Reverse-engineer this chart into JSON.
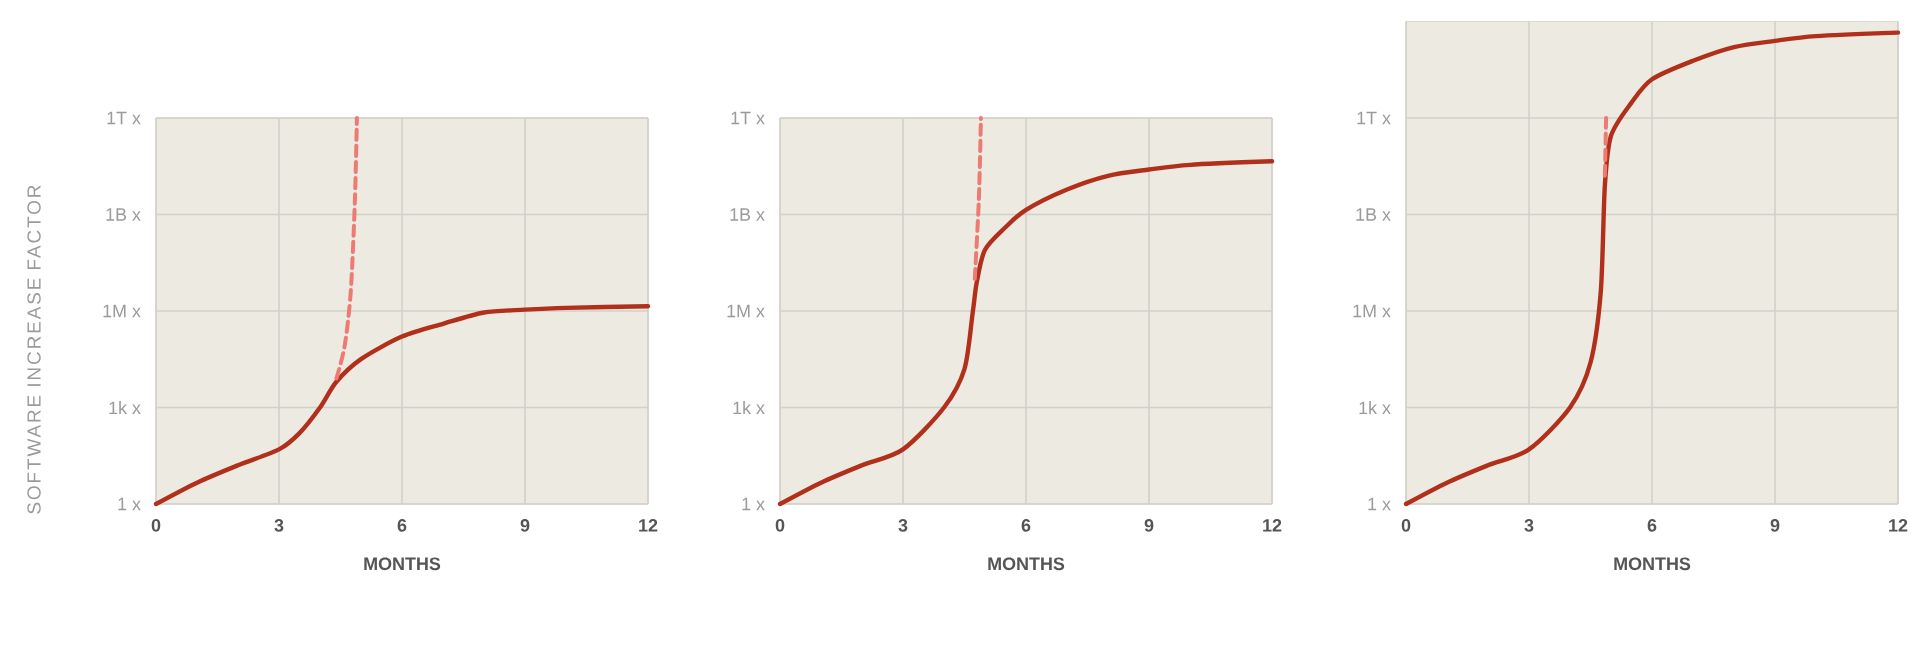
{
  "chart_data": [
    {
      "type": "line",
      "ylabel": "SOFTWARE INCREASE FACTOR",
      "xlabel": "MONTHS",
      "log": "y",
      "grid": true,
      "xlim": [
        0,
        12
      ],
      "xticks": [
        0,
        3,
        6,
        9,
        12
      ],
      "ylim": [
        1,
        1000000000000.0
      ],
      "yticks": [
        {
          "value": 1,
          "label": "1 x"
        },
        {
          "value": 1000,
          "label": "1k x"
        },
        {
          "value": 1000000,
          "label": "1M x"
        },
        {
          "value": 1000000000,
          "label": "1B x"
        },
        {
          "value": 1000000000000,
          "label": "1T x"
        }
      ],
      "series": [
        {
          "color": "#b0301c",
          "line_style": "solid",
          "x": [
            0,
            1,
            2,
            3,
            3.5,
            4,
            4.4,
            5,
            6,
            7,
            8,
            9,
            10,
            12
          ],
          "values": [
            1,
            4.6,
            16,
            50,
            160,
            1000,
            6300,
            32000,
            160000,
            400000,
            900000,
            1100000,
            1250000,
            1400000
          ]
        },
        {
          "color": "#ee7b73",
          "line_style": "dashed",
          "x": [
            4.4,
            4.6,
            4.75,
            4.85,
            4.9
          ],
          "values": [
            8000,
            80000,
            4000000,
            2500000000,
            1000000000000
          ]
        }
      ]
    },
    {
      "type": "line",
      "xlabel": "MONTHS",
      "log": "y",
      "grid": true,
      "xlim": [
        0,
        12
      ],
      "xticks": [
        0,
        3,
        6,
        9,
        12
      ],
      "ylim": [
        1,
        1000000000000.0
      ],
      "yticks": [
        {
          "value": 1,
          "label": "1 x"
        },
        {
          "value": 1000,
          "label": "1k x"
        },
        {
          "value": 1000000,
          "label": "1M x"
        },
        {
          "value": 1000000000,
          "label": "1B x"
        },
        {
          "value": 1000000000000,
          "label": "1T x"
        }
      ],
      "series": [
        {
          "color": "#b0301c",
          "line_style": "solid",
          "x": [
            0,
            1,
            2,
            3,
            4,
            4.5,
            4.7,
            4.8,
            5,
            5.5,
            6,
            7,
            8,
            9,
            10,
            12
          ],
          "values": [
            1,
            4.6,
            16,
            50,
            1000,
            16000,
            900000,
            8000000,
            80000000,
            400000000,
            1400000000,
            6000000000,
            16000000000,
            25000000000,
            35000000000,
            45000000000
          ]
        },
        {
          "color": "#ee7b73",
          "line_style": "dashed",
          "x": [
            4.75,
            4.85,
            4.9
          ],
          "values": [
            10000000,
            3000000000,
            1000000000000
          ]
        }
      ]
    },
    {
      "type": "line",
      "xlabel": "MONTHS",
      "log": "y",
      "grid": true,
      "xlim": [
        0,
        12
      ],
      "xticks": [
        0,
        3,
        6,
        9,
        12
      ],
      "ylim": [
        1,
        1000000000000000.0
      ],
      "yticks": [
        {
          "value": 1,
          "label": "1 x"
        },
        {
          "value": 1000,
          "label": "1k x"
        },
        {
          "value": 1000000,
          "label": "1M x"
        },
        {
          "value": 1000000000,
          "label": "1B x"
        },
        {
          "value": 1000000000000,
          "label": "1T x"
        }
      ],
      "series": [
        {
          "color": "#b0301c",
          "line_style": "solid",
          "x": [
            0,
            1,
            2,
            3,
            4,
            4.5,
            4.75,
            4.85,
            5,
            5.5,
            6,
            7,
            8,
            9,
            10,
            12
          ],
          "values": [
            1,
            4.6,
            16,
            50,
            1000,
            25000,
            4000000,
            8000000000,
            280000000000,
            3000000000000,
            16000000000000,
            60000000000000,
            160000000000000,
            250000000000000,
            350000000000000,
            450000000000000
          ]
        },
        {
          "color": "#ee7b73",
          "line_style": "dashed",
          "x": [
            4.85,
            4.88
          ],
          "values": [
            16000000000,
            1000000000000
          ]
        }
      ]
    }
  ]
}
